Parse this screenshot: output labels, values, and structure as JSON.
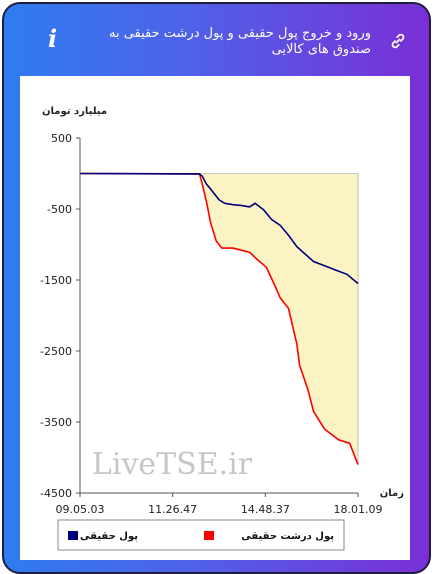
{
  "header": {
    "title": "ورود و خروج پول حقیقی و پول درشت حقیقی به صندوق های کالایی",
    "link_icon": "link-icon",
    "info_icon": "info-icon",
    "info_glyph": "i"
  },
  "colors": {
    "series_real_money": "#00007f",
    "series_big_real_money": "#ff0000",
    "fill_area": "#fbf3c4"
  },
  "chart_data": {
    "type": "line",
    "ylabel": "میلیارد تومان",
    "xlabel": "زمان",
    "ylim": [
      -4500,
      500
    ],
    "yticks": [
      500,
      -500,
      -1500,
      -2500,
      -3500,
      -4500
    ],
    "xtick_labels": [
      "09.05.03",
      "11.26.47",
      "14.48.37",
      "18.01.09"
    ],
    "watermark": "LiveTSE.ir",
    "legend_position": "bottom",
    "series": [
      {
        "name": "پول حقیقی",
        "color": "#00007f",
        "points": [
          [
            0,
            0
          ],
          [
            0.43,
            -5
          ],
          [
            0.44,
            -40
          ],
          [
            0.455,
            -150
          ],
          [
            0.47,
            -220
          ],
          [
            0.5,
            -370
          ],
          [
            0.52,
            -420
          ],
          [
            0.55,
            -440
          ],
          [
            0.58,
            -450
          ],
          [
            0.61,
            -470
          ],
          [
            0.63,
            -420
          ],
          [
            0.66,
            -510
          ],
          [
            0.69,
            -650
          ],
          [
            0.72,
            -730
          ],
          [
            0.75,
            -870
          ],
          [
            0.78,
            -1030
          ],
          [
            0.8,
            -1100
          ],
          [
            0.84,
            -1240
          ],
          [
            0.88,
            -1300
          ],
          [
            0.92,
            -1360
          ],
          [
            0.96,
            -1420
          ],
          [
            1.0,
            -1550
          ]
        ]
      },
      {
        "name": "پول درشت حقیقی",
        "color": "#ff0000",
        "points": [
          [
            0,
            0
          ],
          [
            0.43,
            -5
          ],
          [
            0.44,
            -150
          ],
          [
            0.455,
            -400
          ],
          [
            0.47,
            -700
          ],
          [
            0.49,
            -950
          ],
          [
            0.51,
            -1050
          ],
          [
            0.55,
            -1050
          ],
          [
            0.58,
            -1080
          ],
          [
            0.61,
            -1110
          ],
          [
            0.64,
            -1220
          ],
          [
            0.67,
            -1320
          ],
          [
            0.7,
            -1570
          ],
          [
            0.72,
            -1750
          ],
          [
            0.75,
            -1900
          ],
          [
            0.78,
            -2400
          ],
          [
            0.79,
            -2700
          ],
          [
            0.82,
            -3050
          ],
          [
            0.84,
            -3350
          ],
          [
            0.88,
            -3600
          ],
          [
            0.93,
            -3750
          ],
          [
            0.97,
            -3800
          ],
          [
            1.0,
            -4100
          ]
        ]
      }
    ]
  }
}
